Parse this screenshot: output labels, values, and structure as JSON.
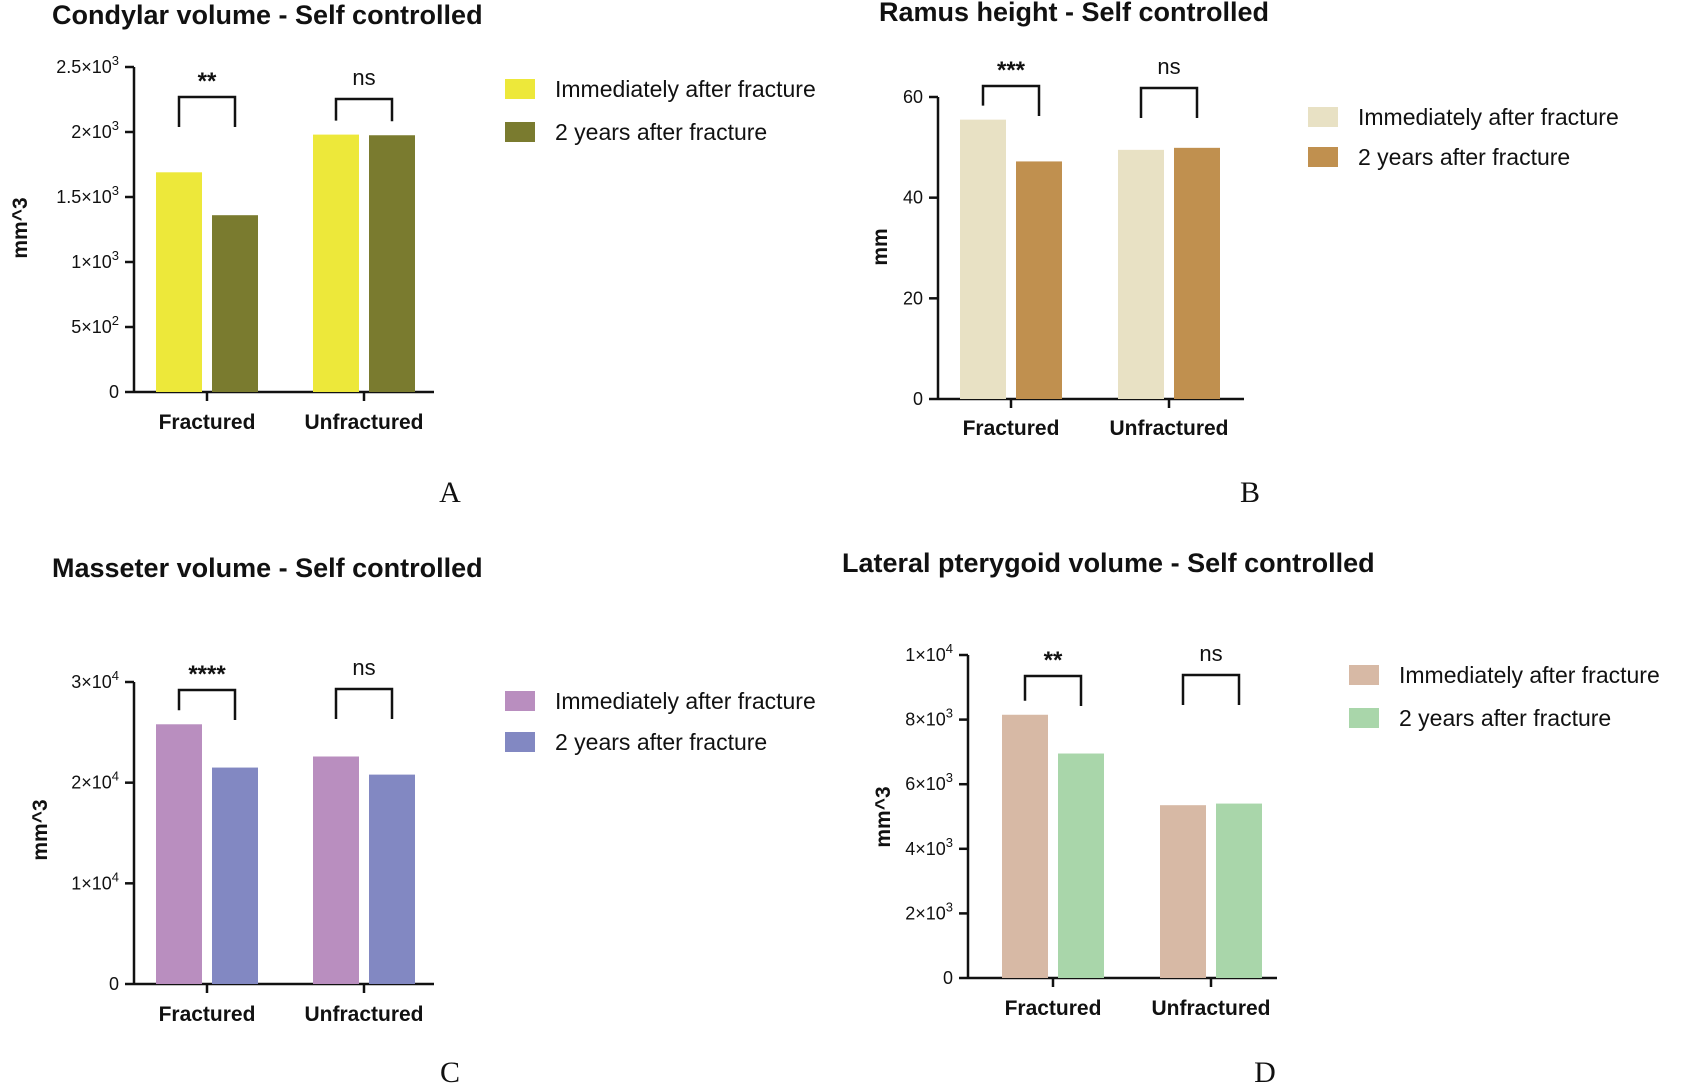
{
  "chart_data": [
    {
      "panel": "A",
      "type": "bar",
      "title": "Condylar volume - Self controlled",
      "xlabel": "",
      "ylabel": "mm^3",
      "categories": [
        "Fractured",
        "Unfractured"
      ],
      "series": [
        {
          "name": "Immediately after fracture",
          "values": [
            1690,
            1980
          ],
          "color": "#ede83a"
        },
        {
          "name": "2 years after fracture",
          "values": [
            1360,
            1975
          ],
          "color": "#7a7b2f"
        }
      ],
      "ylim": [
        0,
        2500
      ],
      "yticks": [
        0,
        500,
        1000,
        1500,
        2000,
        2500
      ],
      "ytick_labels": [
        {
          "mant": "0",
          "exp": ""
        },
        {
          "mant": "5×10",
          "exp": "2"
        },
        {
          "mant": "1×10",
          "exp": "3"
        },
        {
          "mant": "1.5×10",
          "exp": "3"
        },
        {
          "mant": "2×10",
          "exp": "3"
        },
        {
          "mant": "2.5×10",
          "exp": "3"
        }
      ],
      "significance": [
        "**",
        "ns"
      ],
      "legend_position": "right"
    },
    {
      "panel": "B",
      "type": "bar",
      "title": "Ramus height - Self controlled",
      "xlabel": "",
      "ylabel": "mm",
      "categories": [
        "Fractured",
        "Unfractured"
      ],
      "series": [
        {
          "name": "Immediately after fracture",
          "values": [
            55.5,
            49.5
          ],
          "color": "#e8e1c4"
        },
        {
          "name": "2 years after fracture",
          "values": [
            47.2,
            49.9
          ],
          "color": "#c0904f"
        }
      ],
      "ylim": [
        0,
        60
      ],
      "yticks": [
        0,
        20,
        40,
        60
      ],
      "ytick_labels": [
        {
          "mant": "0",
          "exp": ""
        },
        {
          "mant": "20",
          "exp": ""
        },
        {
          "mant": "40",
          "exp": ""
        },
        {
          "mant": "60",
          "exp": ""
        }
      ],
      "significance": [
        "***",
        "ns"
      ],
      "legend_position": "right"
    },
    {
      "panel": "C",
      "type": "bar",
      "title": "Masseter volume - Self controlled",
      "xlabel": "",
      "ylabel": "mm^3",
      "categories": [
        "Fractured",
        "Unfractured"
      ],
      "series": [
        {
          "name": "Immediately after fracture",
          "values": [
            25800,
            22600
          ],
          "color": "#b98ebf"
        },
        {
          "name": "2 years after fracture",
          "values": [
            21500,
            20800
          ],
          "color": "#8288c2"
        }
      ],
      "ylim": [
        0,
        30000
      ],
      "yticks": [
        0,
        10000,
        20000,
        30000
      ],
      "ytick_labels": [
        {
          "mant": "0",
          "exp": ""
        },
        {
          "mant": "1×10",
          "exp": "4"
        },
        {
          "mant": "2×10",
          "exp": "4"
        },
        {
          "mant": "3×10",
          "exp": "4"
        }
      ],
      "significance": [
        "****",
        "ns"
      ],
      "legend_position": "right"
    },
    {
      "panel": "D",
      "type": "bar",
      "title": "Lateral pterygoid volume - Self controlled",
      "xlabel": "",
      "ylabel": "mm^3",
      "categories": [
        "Fractured",
        "Unfractured"
      ],
      "series": [
        {
          "name": "Immediately after fracture",
          "values": [
            8150,
            5350
          ],
          "color": "#d7b9a5"
        },
        {
          "name": "2 years after fracture",
          "values": [
            6950,
            5400
          ],
          "color": "#a9d6aa"
        }
      ],
      "ylim": [
        0,
        10000
      ],
      "yticks": [
        0,
        2000,
        4000,
        6000,
        8000,
        10000
      ],
      "ytick_labels": [
        {
          "mant": "0",
          "exp": ""
        },
        {
          "mant": "2×10",
          "exp": "3"
        },
        {
          "mant": "4×10",
          "exp": "3"
        },
        {
          "mant": "6×10",
          "exp": "3"
        },
        {
          "mant": "8×10",
          "exp": "3"
        },
        {
          "mant": "1×10",
          "exp": "4"
        }
      ],
      "significance": [
        "**",
        "ns"
      ],
      "legend_position": "right"
    }
  ]
}
